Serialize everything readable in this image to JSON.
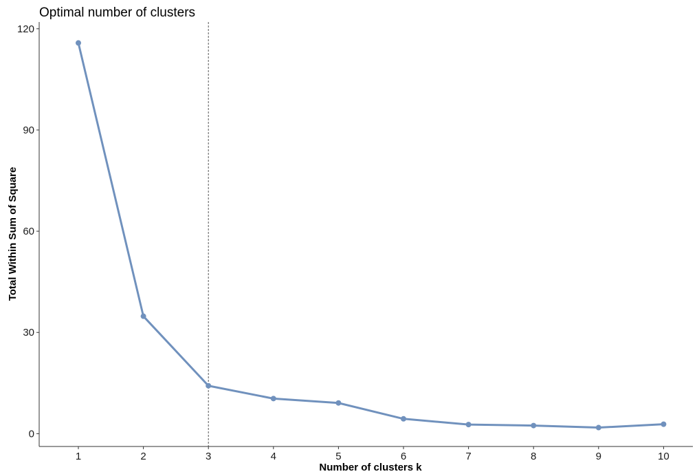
{
  "chart_data": {
    "type": "line",
    "title": "Optimal number of clusters",
    "xlabel": "Number of clusters k",
    "ylabel": "Total Within Sum of Square",
    "x": [
      "1",
      "2",
      "3",
      "4",
      "5",
      "6",
      "7",
      "8",
      "9",
      "10"
    ],
    "series": [
      {
        "values": [
          115.8,
          34.8,
          14.2,
          10.4,
          9.1,
          4.4,
          2.7,
          2.4,
          1.8,
          2.8
        ]
      }
    ],
    "ylim": [
      -3.8,
      122
    ],
    "yticks": [
      0,
      30,
      60,
      90,
      120
    ],
    "optimal_k": 3,
    "line_color": "#7091BD",
    "vline_color": "#555555",
    "grid": false,
    "legend": "none"
  }
}
